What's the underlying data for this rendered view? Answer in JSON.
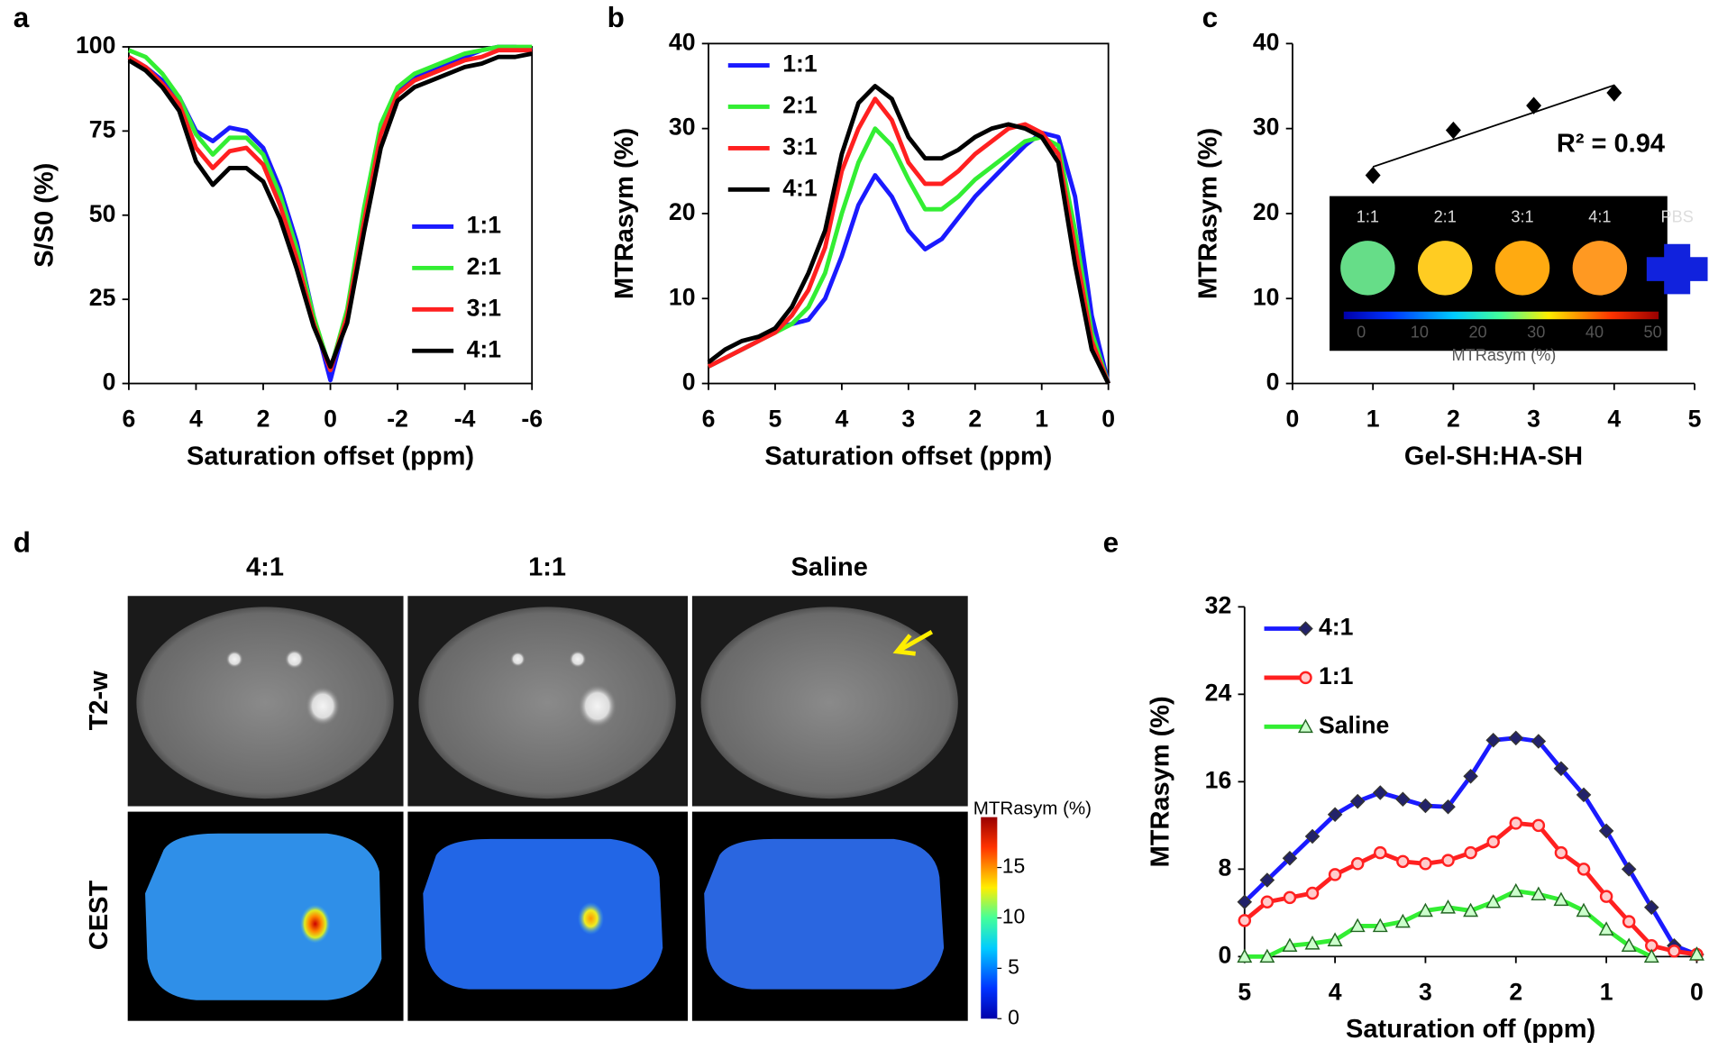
{
  "chart_data": [
    {
      "type": "line",
      "label": "a",
      "xlabel": "Saturation offset (ppm)",
      "ylabel": "S/S0 (%)",
      "x": [
        6,
        5.5,
        5,
        4.5,
        4,
        3.5,
        3,
        2.5,
        2,
        1.5,
        1,
        0.5,
        0,
        -0.5,
        -1,
        -1.5,
        -2,
        -2.5,
        -3,
        -3.5,
        -4,
        -4.5,
        -5,
        -5.5,
        -6
      ],
      "xlim": [
        6,
        -6
      ],
      "xticks": [
        6,
        4,
        2,
        0,
        -2,
        -4,
        -6
      ],
      "ylim": [
        0,
        100
      ],
      "yticks": [
        0,
        25,
        50,
        75,
        100
      ],
      "legend": "lower right",
      "series": [
        {
          "name": "1:1",
          "color": "#1a1aff",
          "values": [
            97,
            94,
            90,
            85,
            75,
            72,
            76,
            75,
            70,
            58,
            42,
            20,
            1,
            20,
            50,
            75,
            87,
            91,
            93,
            95,
            97,
            99,
            100,
            100,
            99
          ]
        },
        {
          "name": "2:1",
          "color": "#33ee33",
          "values": [
            99,
            97,
            92,
            85,
            74,
            68,
            73,
            73,
            68,
            56,
            40,
            20,
            4,
            22,
            52,
            77,
            88,
            92,
            94,
            96,
            98,
            99,
            100,
            100,
            100
          ]
        },
        {
          "name": "3:1",
          "color": "#ff2020",
          "values": [
            97,
            94,
            89,
            83,
            70,
            64,
            69,
            70,
            65,
            53,
            37,
            18,
            4,
            20,
            48,
            74,
            86,
            90,
            92,
            94,
            96,
            97,
            99,
            99,
            99
          ]
        },
        {
          "name": "4:1",
          "color": "#000000",
          "values": [
            96,
            93,
            88,
            81,
            66,
            59,
            64,
            64,
            60,
            49,
            34,
            17,
            5,
            18,
            45,
            70,
            84,
            88,
            90,
            92,
            94,
            95,
            97,
            97,
            98
          ]
        }
      ]
    },
    {
      "type": "line",
      "label": "b",
      "xlabel": "Saturation offset (ppm)",
      "ylabel": "MTRasym (%)",
      "x": [
        6,
        5.75,
        5.5,
        5.25,
        5,
        4.75,
        4.5,
        4.25,
        4,
        3.75,
        3.5,
        3.25,
        3,
        2.75,
        2.5,
        2.25,
        2,
        1.75,
        1.5,
        1.25,
        1,
        0.75,
        0.5,
        0.25,
        0
      ],
      "xlim": [
        6,
        0
      ],
      "xticks": [
        6,
        5,
        4,
        3,
        2,
        1,
        0
      ],
      "ylim": [
        0,
        40
      ],
      "yticks": [
        0,
        10,
        20,
        30,
        40
      ],
      "legend": "upper left",
      "series": [
        {
          "name": "1:1",
          "color": "#1a1aff",
          "values": [
            2,
            3,
            4,
            5,
            6.5,
            7,
            7.5,
            10,
            15,
            21,
            24.5,
            22,
            18,
            15.8,
            17,
            19.5,
            22,
            24,
            26,
            28,
            29.5,
            29,
            22,
            8,
            0
          ]
        },
        {
          "name": "2:1",
          "color": "#33ee33",
          "values": [
            2,
            3,
            4,
            5,
            6,
            7,
            9,
            13,
            20,
            26,
            30,
            28,
            24,
            20.5,
            20.5,
            22,
            24,
            25.5,
            27,
            28.5,
            29,
            28,
            18,
            6,
            0
          ]
        },
        {
          "name": "3:1",
          "color": "#ff2020",
          "values": [
            2,
            3,
            4,
            5,
            6,
            8,
            11,
            16,
            25,
            30,
            33.5,
            31,
            26,
            23.5,
            23.5,
            25,
            27,
            28.5,
            30,
            30.5,
            29.5,
            27,
            16,
            5,
            0
          ]
        },
        {
          "name": "4:1",
          "color": "#000000",
          "values": [
            2.5,
            4,
            5,
            5.5,
            6.5,
            9,
            13,
            18,
            27,
            33,
            35,
            33.5,
            29,
            26.5,
            26.5,
            27.5,
            29,
            30,
            30.5,
            30,
            29,
            26,
            14,
            4,
            0
          ]
        }
      ]
    },
    {
      "type": "scatter",
      "label": "c",
      "xlabel": "Gel-SH:HA-SH",
      "ylabel": "MTRasym (%)",
      "x": [
        1,
        2,
        3,
        4
      ],
      "values": [
        24.5,
        29.8,
        32.7,
        34.2
      ],
      "color": "#000000",
      "trendline": true,
      "annotation": "R² = 0.94",
      "xlim": [
        0,
        5
      ],
      "xticks": [
        0,
        1,
        2,
        3,
        4,
        5
      ],
      "ylim": [
        0,
        40
      ],
      "yticks": [
        0,
        10,
        20,
        30,
        40
      ],
      "inset": {
        "labels": [
          "1:1",
          "2:1",
          "3:1",
          "4:1",
          "PBS"
        ],
        "colorbar_ticks": [
          0,
          10,
          20,
          30,
          40,
          50
        ],
        "clim": [
          -3,
          51
        ],
        "colorbar_label": "MTRasym (%)"
      }
    },
    {
      "type": "line",
      "label": "e",
      "xlabel": "Saturation off (ppm)",
      "ylabel": "MTRasym (%)",
      "x": [
        5,
        4.75,
        4.5,
        4.25,
        4,
        3.75,
        3.5,
        3.25,
        3,
        2.75,
        2.5,
        2.25,
        2,
        1.75,
        1.5,
        1.25,
        1,
        0.75,
        0.5,
        0.25,
        0
      ],
      "xlim": [
        5,
        0
      ],
      "xticks": [
        5,
        4,
        3,
        2,
        1,
        0
      ],
      "ylim": [
        0,
        32
      ],
      "yticks": [
        0,
        8,
        16,
        24,
        32
      ],
      "legend": "upper left",
      "series": [
        {
          "name": "4:1",
          "color": "#1a1aff",
          "marker": "diamond",
          "marker_fill": "#22226a",
          "values": [
            5,
            7,
            9,
            11,
            13,
            14.2,
            15,
            14.4,
            13.8,
            13.7,
            16.5,
            19.8,
            20,
            19.7,
            17.2,
            14.8,
            11.5,
            8,
            4.5,
            1,
            0.2
          ]
        },
        {
          "name": "1:1",
          "color": "#ff2020",
          "marker": "circle",
          "marker_fill": "#ffcccc",
          "values": [
            3.3,
            5,
            5.4,
            5.8,
            7.5,
            8.5,
            9.5,
            8.7,
            8.5,
            8.8,
            9.5,
            10.5,
            12.2,
            12,
            9.5,
            8,
            5.5,
            3.2,
            1,
            0.5,
            0.2
          ]
        },
        {
          "name": "Saline",
          "color": "#33ee33",
          "marker": "triangle",
          "marker_fill": "#ccffcc",
          "values": [
            0,
            0,
            1,
            1.2,
            1.5,
            2.8,
            2.8,
            3.2,
            4.2,
            4.5,
            4.2,
            5,
            6,
            5.7,
            5.2,
            4.2,
            2.5,
            1,
            0,
            null,
            0.2
          ]
        }
      ]
    }
  ],
  "images_panel": {
    "label": "d",
    "columns": [
      "4:1",
      "1:1",
      "Saline"
    ],
    "rows": [
      "T2-w",
      "CEST"
    ],
    "colorbar": {
      "label": "MTRasym (%)",
      "ticks": [
        0,
        5,
        10,
        15
      ],
      "clim": [
        0,
        20
      ]
    }
  }
}
